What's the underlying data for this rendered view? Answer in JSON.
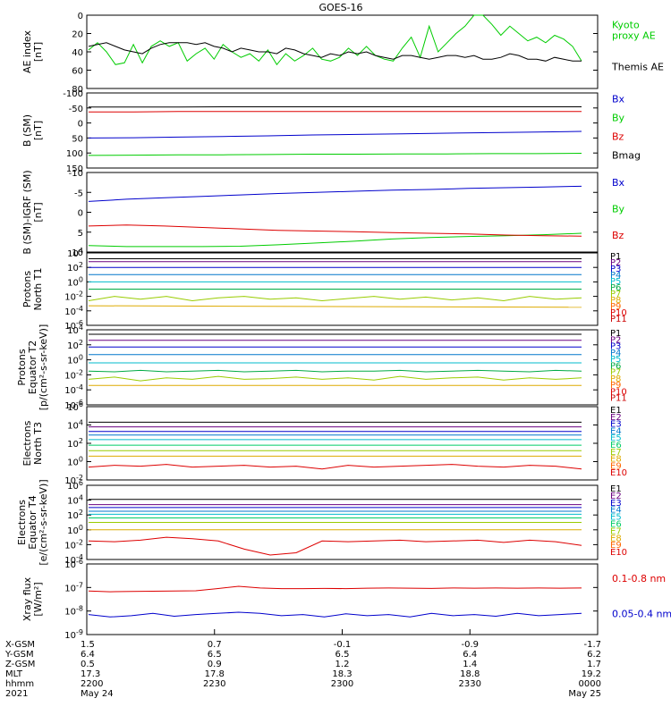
{
  "title": "GOES-16",
  "colors": {
    "black": "#000000",
    "red": "#dd0000",
    "green": "#00cc00",
    "blue": "#0000cc"
  },
  "time_axis": {
    "start": "2021-05-24 22:00",
    "end": "2021-05-25 00:00",
    "rows": [
      {
        "label": "X-GSM",
        "values": [
          "1.5",
          "0.7",
          "-0.1",
          "-0.9",
          "-1.7"
        ]
      },
      {
        "label": "Y-GSM",
        "values": [
          "6.4",
          "6.5",
          "6.5",
          "6.4",
          "6.2"
        ]
      },
      {
        "label": "Z-GSM",
        "values": [
          "0.5",
          "0.9",
          "1.2",
          "1.4",
          "1.7"
        ]
      },
      {
        "label": "MLT",
        "values": [
          "17.3",
          "17.8",
          "18.3",
          "18.8",
          "19.2"
        ]
      },
      {
        "label": "hhmm",
        "values": [
          "2200",
          "2230",
          "2300",
          "2330",
          "0000"
        ]
      },
      {
        "label": "2021",
        "values": [
          "May 24",
          "",
          "",
          "",
          "May 25"
        ]
      }
    ]
  },
  "chart_data": [
    {
      "type": "line",
      "id": "ae",
      "ylabel": "AE index\n[nT]",
      "ylim": [
        0,
        80
      ],
      "yticks": [
        "0",
        "20",
        "40",
        "60",
        "80"
      ],
      "series": [
        {
          "name": "Kyoto\nproxy AE",
          "color": "#00cc00",
          "values": [
            42,
            50,
            40,
            26,
            28,
            48,
            28,
            46,
            52,
            46,
            50,
            30,
            38,
            44,
            32,
            48,
            40,
            34,
            38,
            30,
            42,
            26,
            38,
            30,
            36,
            44,
            32,
            30,
            34,
            44,
            36,
            46,
            36,
            32,
            30,
            44,
            56,
            34,
            68,
            40,
            50,
            60,
            68,
            80,
            80,
            70,
            58,
            68,
            60,
            52,
            56,
            50,
            58,
            54,
            46,
            30
          ]
        },
        {
          "name": "Themis AE",
          "color": "#000000",
          "values": [
            46,
            48,
            50,
            46,
            42,
            40,
            38,
            44,
            48,
            50,
            50,
            50,
            48,
            50,
            46,
            44,
            40,
            44,
            42,
            40,
            40,
            38,
            44,
            42,
            38,
            36,
            34,
            38,
            36,
            40,
            38,
            40,
            36,
            34,
            32,
            36,
            36,
            34,
            32,
            34,
            36,
            36,
            34,
            36,
            32,
            32,
            34,
            38,
            36,
            32,
            32,
            30,
            34,
            32,
            30,
            30
          ]
        }
      ],
      "legend": "right"
    },
    {
      "type": "line",
      "id": "b",
      "ylabel": "B (SM)\n[nT]",
      "ylim": [
        -100,
        150
      ],
      "yticks": [
        "-100",
        "-50",
        "0",
        "50",
        "100",
        "150"
      ],
      "series": [
        {
          "name": "Bx",
          "color": "#0000cc",
          "values": [
            0,
            1,
            3,
            5,
            7,
            10,
            12,
            14,
            16,
            18,
            20,
            22
          ]
        },
        {
          "name": "By",
          "color": "#00cc00",
          "values": [
            -58,
            -57,
            -56,
            -56,
            -55,
            -54,
            -54,
            -53,
            -53,
            -52,
            -52,
            -51
          ]
        },
        {
          "name": "Bz",
          "color": "#dd0000",
          "values": [
            87,
            87,
            88,
            88,
            88,
            88,
            88,
            88,
            88,
            88,
            88,
            88
          ]
        },
        {
          "name": "Bmag",
          "color": "#000000",
          "values": [
            103,
            103,
            103,
            104,
            104,
            104,
            104,
            104,
            104,
            104,
            104,
            104
          ]
        }
      ],
      "legend": "right"
    },
    {
      "type": "line",
      "id": "bd",
      "ylabel": "B (SM)-IGRF (SM)\n[nT]",
      "ylim": [
        -11,
        11
      ],
      "yticks": [
        "-10",
        "-5",
        "0",
        "5",
        "10"
      ],
      "series": [
        {
          "name": "Bx",
          "color": "#0000cc",
          "values": [
            3.0,
            3.6,
            4.0,
            4.4,
            4.8,
            5.2,
            5.5,
            5.8,
            6.1,
            6.3,
            6.6,
            6.8,
            7.0,
            7.2
          ]
        },
        {
          "name": "By",
          "color": "#00cc00",
          "values": [
            -9.2,
            -9.5,
            -9.5,
            -9.5,
            -9.4,
            -9.0,
            -8.5,
            -8.0,
            -7.4,
            -7.0,
            -6.7,
            -6.5,
            -6.2,
            -5.8
          ]
        },
        {
          "name": "Bz",
          "color": "#dd0000",
          "values": [
            -3.8,
            -3.5,
            -3.8,
            -4.2,
            -4.6,
            -5.0,
            -5.2,
            -5.4,
            -5.6,
            -5.8,
            -6.0,
            -6.3,
            -6.5,
            -6.6
          ]
        }
      ],
      "legend": "right"
    },
    {
      "type": "line",
      "id": "p1",
      "ylabel": "Protons\nNorth T1",
      "ylim_log": [
        -6,
        4
      ],
      "yticks": [
        "10^4",
        "10^2",
        "10^0",
        "10^-2",
        "10^-4",
        "10^-6"
      ],
      "legend_labels": [
        "P1",
        "P2",
        "P3",
        "P4",
        "P5",
        "P6",
        "P7",
        "P8",
        "P9",
        "P10",
        "P11"
      ],
      "label_colors": [
        "#000000",
        "#6a0080",
        "#0000cc",
        "#0077cc",
        "#00bbcc",
        "#00aa44",
        "#99cc00",
        "#ddaa00",
        "#ff6600",
        "#dd0000",
        "#cc0000"
      ],
      "series": [
        {
          "name": "P1",
          "color": "#000000",
          "values": [
            3.2,
            3.2
          ]
        },
        {
          "name": "P2",
          "color": "#6a0080",
          "values": [
            2.8,
            2.8
          ]
        },
        {
          "name": "P3",
          "color": "#0000cc",
          "values": [
            2.0,
            2.0
          ]
        },
        {
          "name": "P4",
          "color": "#0077cc",
          "values": [
            1.0,
            1.0
          ]
        },
        {
          "name": "P5",
          "color": "#00bbcc",
          "values": [
            0.0,
            0.0
          ]
        },
        {
          "name": "P6",
          "color": "#00aa44",
          "values": [
            -1.0,
            -1.0
          ]
        },
        {
          "name": "P7",
          "color": "#99cc00",
          "values": [
            -2.6,
            -2.0,
            -2.4,
            -2.0,
            -2.6,
            -2.2,
            -2.0,
            -2.4,
            -2.2,
            -2.6,
            -2.3,
            -2.0,
            -2.4,
            -2.1,
            -2.5,
            -2.2,
            -2.6,
            -2.0,
            -2.4,
            -2.2
          ]
        },
        {
          "name": "P8",
          "color": "#ddaa00",
          "values": [
            -3.3,
            -3.5
          ]
        }
      ]
    },
    {
      "type": "line",
      "id": "p2",
      "ylabel": "Protons\nEquator T2\n[p/(cm²-s-sr-keV)]",
      "ylim_log": [
        -6,
        4
      ],
      "yticks": [
        "10^4",
        "10^2",
        "10^0",
        "10^-2",
        "10^-4",
        "10^-6"
      ],
      "legend_labels": [
        "P1",
        "P2",
        "P3",
        "P4",
        "P5",
        "P6",
        "P7",
        "P8",
        "P9",
        "P10",
        "P11"
      ],
      "label_colors": [
        "#000000",
        "#6a0080",
        "#0000cc",
        "#0077cc",
        "#00bbcc",
        "#00aa44",
        "#99cc00",
        "#ddaa00",
        "#ff6600",
        "#dd0000",
        "#cc0000"
      ],
      "series": [
        {
          "name": "P1",
          "color": "#000000",
          "values": [
            3.4,
            3.4
          ]
        },
        {
          "name": "P2",
          "color": "#6a0080",
          "values": [
            2.6,
            2.6
          ]
        },
        {
          "name": "P3",
          "color": "#0000cc",
          "values": [
            1.7,
            1.7
          ]
        },
        {
          "name": "P4",
          "color": "#0077cc",
          "values": [
            0.7,
            0.7
          ]
        },
        {
          "name": "P5",
          "color": "#00bbcc",
          "values": [
            -0.4,
            -0.4
          ]
        },
        {
          "name": "P6",
          "color": "#00aa44",
          "values": [
            -1.5,
            -1.6,
            -1.4,
            -1.6,
            -1.5,
            -1.4,
            -1.6,
            -1.5,
            -1.4,
            -1.6,
            -1.5,
            -1.5,
            -1.4,
            -1.6,
            -1.5,
            -1.4,
            -1.5,
            -1.6,
            -1.4,
            -1.5
          ]
        },
        {
          "name": "P7",
          "color": "#99cc00",
          "values": [
            -2.6,
            -2.3,
            -2.8,
            -2.4,
            -2.6,
            -2.2,
            -2.6,
            -2.5,
            -2.3,
            -2.6,
            -2.4,
            -2.7,
            -2.2,
            -2.6,
            -2.4,
            -2.3,
            -2.7,
            -2.4,
            -2.6,
            -2.4
          ]
        },
        {
          "name": "P8",
          "color": "#ddaa00",
          "values": [
            -3.4,
            -3.4
          ]
        }
      ]
    },
    {
      "type": "line",
      "id": "e1",
      "ylabel": "Electrons\nNorth T3",
      "ylim_log": [
        -2,
        6
      ],
      "yticks": [
        "10^6",
        "10^4",
        "10^2",
        "10^0",
        "10^-2"
      ],
      "legend_labels": [
        "E1",
        "E2",
        "E3",
        "E4",
        "E5",
        "E6",
        "E7",
        "E8",
        "E9",
        "E10"
      ],
      "label_colors": [
        "#000000",
        "#6a0080",
        "#0000cc",
        "#0077cc",
        "#00bbcc",
        "#00cc66",
        "#99cc00",
        "#ddaa00",
        "#ff6600",
        "#dd0000"
      ],
      "series": [
        {
          "name": "E1",
          "color": "#000000",
          "values": [
            4.3,
            4.3
          ]
        },
        {
          "name": "E2",
          "color": "#6a0080",
          "values": [
            3.8,
            3.8
          ]
        },
        {
          "name": "E3",
          "color": "#0000cc",
          "values": [
            3.3,
            3.3
          ]
        },
        {
          "name": "E4",
          "color": "#0077cc",
          "values": [
            2.9,
            2.9
          ]
        },
        {
          "name": "E5",
          "color": "#00bbcc",
          "values": [
            2.4,
            2.4
          ]
        },
        {
          "name": "E6",
          "color": "#00cc66",
          "values": [
            1.8,
            1.8
          ]
        },
        {
          "name": "E7",
          "color": "#99cc00",
          "values": [
            1.2,
            1.2
          ]
        },
        {
          "name": "E8",
          "color": "#ddaa00",
          "values": [
            0.6,
            0.6
          ]
        },
        {
          "name": "E9",
          "color": "#dd0000",
          "values": [
            -0.6,
            -0.4,
            -0.5,
            -0.3,
            -0.6,
            -0.5,
            -0.4,
            -0.6,
            -0.5,
            -0.8,
            -0.4,
            -0.6,
            -0.5,
            -0.4,
            -0.3,
            -0.5,
            -0.6,
            -0.4,
            -0.5,
            -0.8
          ]
        }
      ]
    },
    {
      "type": "line",
      "id": "e2",
      "ylabel": "Electrons\nEquator T4\n[e/(cm²-s-sr-keV)]",
      "ylim_log": [
        -4,
        6
      ],
      "yticks": [
        "10^6",
        "10^4",
        "10^2",
        "10^0",
        "10^-2",
        "10^-4"
      ],
      "legend_labels": [
        "E1",
        "E2",
        "E3",
        "E4",
        "E5",
        "E6",
        "E7",
        "E8",
        "E9",
        "E10"
      ],
      "label_colors": [
        "#000000",
        "#6a0080",
        "#0000cc",
        "#0077cc",
        "#00bbcc",
        "#00cc66",
        "#99cc00",
        "#ddaa00",
        "#ff6600",
        "#dd0000"
      ],
      "series": [
        {
          "name": "E1",
          "color": "#000000",
          "values": [
            4.1,
            4.1
          ]
        },
        {
          "name": "E2",
          "color": "#6a0080",
          "values": [
            3.4,
            3.4
          ]
        },
        {
          "name": "E3",
          "color": "#0000cc",
          "values": [
            3.0,
            3.0
          ]
        },
        {
          "name": "E4",
          "color": "#0077cc",
          "values": [
            2.5,
            2.5
          ]
        },
        {
          "name": "E5",
          "color": "#00bbcc",
          "values": [
            2.1,
            2.1
          ]
        },
        {
          "name": "E6",
          "color": "#00cc66",
          "values": [
            1.6,
            1.6
          ]
        },
        {
          "name": "E7",
          "color": "#99cc00",
          "values": [
            1.0,
            1.0
          ]
        },
        {
          "name": "E8",
          "color": "#ddaa00",
          "values": [
            0.0,
            0.0
          ]
        },
        {
          "name": "E9",
          "color": "#dd0000",
          "values": [
            -1.5,
            -1.6,
            -1.4,
            -1.0,
            -1.2,
            -1.5,
            -2.6,
            -3.4,
            -3.1,
            -1.5,
            -1.6,
            -1.5,
            -1.4,
            -1.6,
            -1.5,
            -1.4,
            -1.7,
            -1.4,
            -1.6,
            -2.1
          ]
        }
      ]
    },
    {
      "type": "line",
      "id": "x",
      "ylabel": "Xray flux\n[W/m²]",
      "ylim_log": [
        -9,
        -6
      ],
      "yticks": [
        "10^-6",
        "10^-7",
        "10^-8",
        "10^-9"
      ],
      "series": [
        {
          "name": "0.1-0.8 nm",
          "color": "#dd0000",
          "values": [
            -7.15,
            -7.18,
            -7.17,
            -7.16,
            -7.15,
            -7.14,
            -7.05,
            -6.95,
            -7.02,
            -7.05,
            -7.05,
            -7.04,
            -7.05,
            -7.03,
            -7.02,
            -7.03,
            -7.04,
            -7.02,
            -7.03,
            -7.02,
            -7.03,
            -7.02,
            -7.03,
            -7.02
          ]
        },
        {
          "name": "0.05-0.4 nm",
          "color": "#0000cc",
          "values": [
            -8.15,
            -8.25,
            -8.2,
            -8.1,
            -8.22,
            -8.15,
            -8.1,
            -8.05,
            -8.1,
            -8.2,
            -8.15,
            -8.25,
            -8.12,
            -8.2,
            -8.15,
            -8.25,
            -8.1,
            -8.2,
            -8.15,
            -8.22,
            -8.1,
            -8.2,
            -8.15,
            -8.1
          ]
        }
      ],
      "legend": "right"
    }
  ]
}
